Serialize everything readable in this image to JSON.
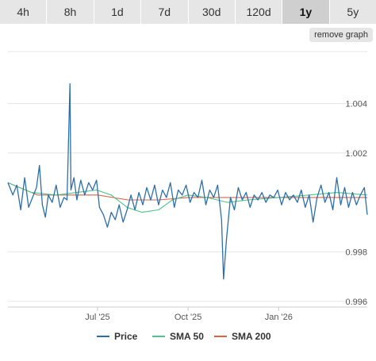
{
  "timeframe_tabs": [
    {
      "label": "4h"
    },
    {
      "label": "8h"
    },
    {
      "label": "1d"
    },
    {
      "label": "7d"
    },
    {
      "label": "30d"
    },
    {
      "label": "120d"
    },
    {
      "label": "1y",
      "active": true
    },
    {
      "label": "5y"
    }
  ],
  "remove_graph_label": "remove graph",
  "colors": {
    "price": "#2c6fa8",
    "sma50": "#4cc38a",
    "sma200": "#d9644a",
    "grid": "#e6e6e6"
  },
  "chart_data": {
    "type": "line",
    "title": "",
    "xlabel": "",
    "ylabel": "",
    "x_range": [
      "2025-04-01",
      "2026-04-01"
    ],
    "ylim": [
      0.9958,
      1.0061
    ],
    "y_ticks": [
      0.996,
      0.998,
      1.002,
      1.004
    ],
    "y_tick_labels": [
      "0.996",
      "0.998",
      "1.002",
      "1.004"
    ],
    "x_ticks": [
      "2025-07-01",
      "2025-10-01",
      "2026-01-01"
    ],
    "x_tick_labels": [
      "Jul '25",
      "Oct '25",
      "Jan '26"
    ],
    "grid": true,
    "legend_position": "bottom",
    "series": [
      {
        "name": "Price",
        "color": "#2c6fa8",
        "points": [
          [
            "2025-04-01",
            1.0008
          ],
          [
            "2025-04-06",
            1.0003
          ],
          [
            "2025-04-10",
            1.0007
          ],
          [
            "2025-04-14",
            0.9997
          ],
          [
            "2025-04-18",
            1.001
          ],
          [
            "2025-04-22",
            0.9998
          ],
          [
            "2025-04-26",
            1.0002
          ],
          [
            "2025-04-30",
            1.0006
          ],
          [
            "2025-05-03",
            1.0015
          ],
          [
            "2025-05-06",
            0.9999
          ],
          [
            "2025-05-09",
            0.9994
          ],
          [
            "2025-05-12",
            1.0003
          ],
          [
            "2025-05-16",
            1.0
          ],
          [
            "2025-05-20",
            1.0007
          ],
          [
            "2025-05-24",
            0.9998
          ],
          [
            "2025-05-28",
            1.0002
          ],
          [
            "2025-05-31",
            1.0001
          ],
          [
            "2025-06-03",
            1.0048
          ],
          [
            "2025-06-04",
            1.0005
          ],
          [
            "2025-06-07",
            1.001
          ],
          [
            "2025-06-10",
            1.0001
          ],
          [
            "2025-06-14",
            1.0009
          ],
          [
            "2025-06-18",
            1.0003
          ],
          [
            "2025-06-22",
            1.0008
          ],
          [
            "2025-06-26",
            1.0005
          ],
          [
            "2025-06-30",
            1.0009
          ],
          [
            "2025-07-03",
            0.9998
          ],
          [
            "2025-07-07",
            0.9995
          ],
          [
            "2025-07-11",
            0.999
          ],
          [
            "2025-07-15",
            0.9996
          ],
          [
            "2025-07-19",
            0.9993
          ],
          [
            "2025-07-23",
            0.9999
          ],
          [
            "2025-07-27",
            0.9992
          ],
          [
            "2025-07-31",
            0.9997
          ],
          [
            "2025-08-04",
            1.0003
          ],
          [
            "2025-08-08",
            0.9997
          ],
          [
            "2025-08-12",
            1.0004
          ],
          [
            "2025-08-16",
            0.9999
          ],
          [
            "2025-08-20",
            1.0006
          ],
          [
            "2025-08-24",
            1.0001
          ],
          [
            "2025-08-28",
            1.0007
          ],
          [
            "2025-09-01",
            0.9999
          ],
          [
            "2025-09-05",
            1.0005
          ],
          [
            "2025-09-09",
            1.0002
          ],
          [
            "2025-09-13",
            1.0008
          ],
          [
            "2025-09-17",
            0.9998
          ],
          [
            "2025-09-21",
            1.0005
          ],
          [
            "2025-09-25",
            1.0003
          ],
          [
            "2025-09-29",
            1.0007
          ],
          [
            "2025-10-03",
            1.0
          ],
          [
            "2025-10-07",
            1.0004
          ],
          [
            "2025-10-11",
            1.0002
          ],
          [
            "2025-10-15",
            1.0009
          ],
          [
            "2025-10-19",
            0.9999
          ],
          [
            "2025-10-23",
            1.0005
          ],
          [
            "2025-10-27",
            1.0002
          ],
          [
            "2025-10-31",
            1.0007
          ],
          [
            "2025-11-04",
            0.9993
          ],
          [
            "2025-11-06",
            0.9969
          ],
          [
            "2025-11-09",
            0.9985
          ],
          [
            "2025-11-13",
            1.0002
          ],
          [
            "2025-11-17",
            0.9997
          ],
          [
            "2025-11-21",
            1.0006
          ],
          [
            "2025-11-25",
            1.0001
          ],
          [
            "2025-11-29",
            1.0004
          ],
          [
            "2025-12-03",
            0.9998
          ],
          [
            "2025-12-07",
            1.0003
          ],
          [
            "2025-12-11",
            1.0001
          ],
          [
            "2025-12-15",
            1.0004
          ],
          [
            "2025-12-19",
            1.0
          ],
          [
            "2025-12-23",
            1.0003
          ],
          [
            "2025-12-27",
            1.0002
          ],
          [
            "2025-12-31",
            1.0005
          ],
          [
            "2026-01-04",
            0.9999
          ],
          [
            "2026-01-08",
            1.0004
          ],
          [
            "2026-01-12",
            1.0001
          ],
          [
            "2026-01-16",
            1.0003
          ],
          [
            "2026-01-20",
            1.0
          ],
          [
            "2026-01-24",
            1.0005
          ],
          [
            "2026-01-28",
            0.9998
          ],
          [
            "2026-02-01",
            1.0003
          ],
          [
            "2026-02-05",
            0.9992
          ],
          [
            "2026-02-09",
            1.0002
          ],
          [
            "2026-02-13",
            1.0007
          ],
          [
            "2026-02-17",
            1.0
          ],
          [
            "2026-02-21",
            1.0004
          ],
          [
            "2026-02-25",
            0.9997
          ],
          [
            "2026-03-01",
            1.001
          ],
          [
            "2026-03-05",
            0.9999
          ],
          [
            "2026-03-09",
            1.0006
          ],
          [
            "2026-03-13",
            0.9998
          ],
          [
            "2026-03-17",
            1.0004
          ],
          [
            "2026-03-21",
            0.9999
          ],
          [
            "2026-03-25",
            1.0003
          ],
          [
            "2026-03-29",
            1.0006
          ],
          [
            "2026-04-01",
            0.9995
          ]
        ]
      },
      {
        "name": "SMA 50",
        "color": "#4cc38a",
        "points": [
          [
            "2025-04-01",
            1.0008
          ],
          [
            "2025-04-25",
            1.0004
          ],
          [
            "2025-05-20",
            1.0003
          ],
          [
            "2025-06-10",
            1.0004
          ],
          [
            "2025-06-30",
            1.0005
          ],
          [
            "2025-07-15",
            1.0003
          ],
          [
            "2025-07-31",
            0.9998
          ],
          [
            "2025-08-15",
            0.9996
          ],
          [
            "2025-09-01",
            0.9997
          ],
          [
            "2025-09-15",
            1.0001
          ],
          [
            "2025-10-01",
            1.0003
          ],
          [
            "2025-10-20",
            1.0002
          ],
          [
            "2025-11-10",
            1.0
          ],
          [
            "2025-12-01",
            1.0001
          ],
          [
            "2026-01-01",
            1.0002
          ],
          [
            "2026-02-01",
            1.0003
          ],
          [
            "2026-03-01",
            1.0004
          ],
          [
            "2026-04-01",
            1.0003
          ]
        ]
      },
      {
        "name": "SMA 200",
        "color": "#d9644a",
        "points": [
          [
            "2025-04-01",
            1.0008
          ],
          [
            "2025-05-01",
            1.0003
          ],
          [
            "2025-06-01",
            1.0003
          ],
          [
            "2025-07-01",
            1.0003
          ],
          [
            "2025-08-01",
            1.0001
          ],
          [
            "2025-09-01",
            1.0001
          ],
          [
            "2025-10-01",
            1.0002
          ],
          [
            "2025-11-01",
            1.0002
          ],
          [
            "2025-12-01",
            1.0002
          ],
          [
            "2026-01-01",
            1.0002
          ],
          [
            "2026-02-01",
            1.0002
          ],
          [
            "2026-03-01",
            1.0002
          ],
          [
            "2026-04-01",
            1.0002
          ]
        ]
      }
    ]
  }
}
